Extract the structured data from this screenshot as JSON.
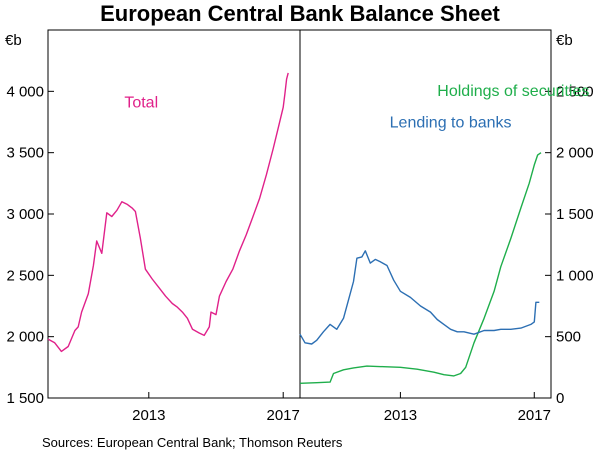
{
  "title": "European Central Bank Balance Sheet",
  "source": "Sources: European Central Bank; Thomson Reuters",
  "chart_data": [
    {
      "type": "line",
      "panel": "left",
      "unit_label": "€b",
      "ylim": [
        1500,
        4500
      ],
      "yticks": [
        "1 500",
        "2 000",
        "2 500",
        "3 000",
        "3 500",
        "4 000"
      ],
      "ytick_values": [
        1500,
        2000,
        2500,
        3000,
        3500,
        4000
      ],
      "xlim": [
        2010,
        2017.5
      ],
      "xticks": [
        "2013",
        "2017"
      ],
      "xtick_values": [
        2013,
        2017
      ],
      "grid": false,
      "series": [
        {
          "name": "Total",
          "color": "#e0218a",
          "points": [
            [
              2010.0,
              1980
            ],
            [
              2010.2,
              1950
            ],
            [
              2010.4,
              1880
            ],
            [
              2010.6,
              1920
            ],
            [
              2010.8,
              2050
            ],
            [
              2010.9,
              2080
            ],
            [
              2011.0,
              2200
            ],
            [
              2011.2,
              2350
            ],
            [
              2011.35,
              2580
            ],
            [
              2011.45,
              2780
            ],
            [
              2011.6,
              2680
            ],
            [
              2011.75,
              3010
            ],
            [
              2011.9,
              2980
            ],
            [
              2012.05,
              3030
            ],
            [
              2012.2,
              3100
            ],
            [
              2012.35,
              3080
            ],
            [
              2012.5,
              3050
            ],
            [
              2012.6,
              3020
            ],
            [
              2012.75,
              2800
            ],
            [
              2012.9,
              2550
            ],
            [
              2013.1,
              2470
            ],
            [
              2013.3,
              2400
            ],
            [
              2013.5,
              2330
            ],
            [
              2013.7,
              2270
            ],
            [
              2013.85,
              2240
            ],
            [
              2014.0,
              2200
            ],
            [
              2014.15,
              2150
            ],
            [
              2014.3,
              2060
            ],
            [
              2014.5,
              2030
            ],
            [
              2014.65,
              2010
            ],
            [
              2014.8,
              2080
            ],
            [
              2014.85,
              2200
            ],
            [
              2015.0,
              2180
            ],
            [
              2015.1,
              2330
            ],
            [
              2015.3,
              2450
            ],
            [
              2015.5,
              2550
            ],
            [
              2015.7,
              2700
            ],
            [
              2015.9,
              2830
            ],
            [
              2016.1,
              2980
            ],
            [
              2016.3,
              3130
            ],
            [
              2016.5,
              3320
            ],
            [
              2016.7,
              3530
            ],
            [
              2016.85,
              3700
            ],
            [
              2017.0,
              3870
            ],
            [
              2017.05,
              3980
            ],
            [
              2017.1,
              4100
            ],
            [
              2017.15,
              4150
            ]
          ]
        }
      ]
    },
    {
      "type": "line",
      "panel": "right",
      "unit_label": "€b",
      "ylim": [
        0,
        3000
      ],
      "yticks": [
        "0",
        "500",
        "1 000",
        "1 500",
        "2 000",
        "2 500"
      ],
      "ytick_values": [
        0,
        500,
        1000,
        1500,
        2000,
        2500
      ],
      "xlim": [
        2010,
        2017.5
      ],
      "xticks": [
        "2013",
        "2017"
      ],
      "xtick_values": [
        2013,
        2017
      ],
      "grid": false,
      "series": [
        {
          "name": "Holdings of securities",
          "color": "#1fae4b",
          "points": [
            [
              2010.0,
              120
            ],
            [
              2010.5,
              125
            ],
            [
              2010.9,
              130
            ],
            [
              2011.0,
              200
            ],
            [
              2011.3,
              230
            ],
            [
              2011.6,
              245
            ],
            [
              2012.0,
              260
            ],
            [
              2012.5,
              255
            ],
            [
              2013.0,
              250
            ],
            [
              2013.5,
              235
            ],
            [
              2014.0,
              210
            ],
            [
              2014.3,
              190
            ],
            [
              2014.6,
              180
            ],
            [
              2014.8,
              200
            ],
            [
              2014.95,
              250
            ],
            [
              2015.2,
              450
            ],
            [
              2015.5,
              650
            ],
            [
              2015.8,
              870
            ],
            [
              2016.0,
              1070
            ],
            [
              2016.3,
              1300
            ],
            [
              2016.6,
              1550
            ],
            [
              2016.85,
              1750
            ],
            [
              2017.0,
              1900
            ],
            [
              2017.1,
              1980
            ],
            [
              2017.2,
              2000
            ]
          ]
        },
        {
          "name": "Lending to banks",
          "color": "#2c6fb3",
          "points": [
            [
              2010.0,
              520
            ],
            [
              2010.15,
              450
            ],
            [
              2010.35,
              440
            ],
            [
              2010.5,
              470
            ],
            [
              2010.7,
              540
            ],
            [
              2010.9,
              600
            ],
            [
              2011.1,
              560
            ],
            [
              2011.3,
              650
            ],
            [
              2011.45,
              800
            ],
            [
              2011.6,
              950
            ],
            [
              2011.7,
              1140
            ],
            [
              2011.85,
              1150
            ],
            [
              2011.95,
              1200
            ],
            [
              2012.1,
              1100
            ],
            [
              2012.25,
              1130
            ],
            [
              2012.4,
              1110
            ],
            [
              2012.6,
              1080
            ],
            [
              2012.8,
              960
            ],
            [
              2013.0,
              870
            ],
            [
              2013.3,
              820
            ],
            [
              2013.6,
              750
            ],
            [
              2013.9,
              700
            ],
            [
              2014.1,
              640
            ],
            [
              2014.3,
              600
            ],
            [
              2014.5,
              560
            ],
            [
              2014.7,
              540
            ],
            [
              2014.9,
              540
            ],
            [
              2015.2,
              520
            ],
            [
              2015.5,
              550
            ],
            [
              2015.8,
              550
            ],
            [
              2016.0,
              560
            ],
            [
              2016.3,
              560
            ],
            [
              2016.6,
              570
            ],
            [
              2016.9,
              600
            ],
            [
              2017.0,
              620
            ],
            [
              2017.05,
              780
            ],
            [
              2017.15,
              780
            ]
          ]
        }
      ]
    }
  ]
}
